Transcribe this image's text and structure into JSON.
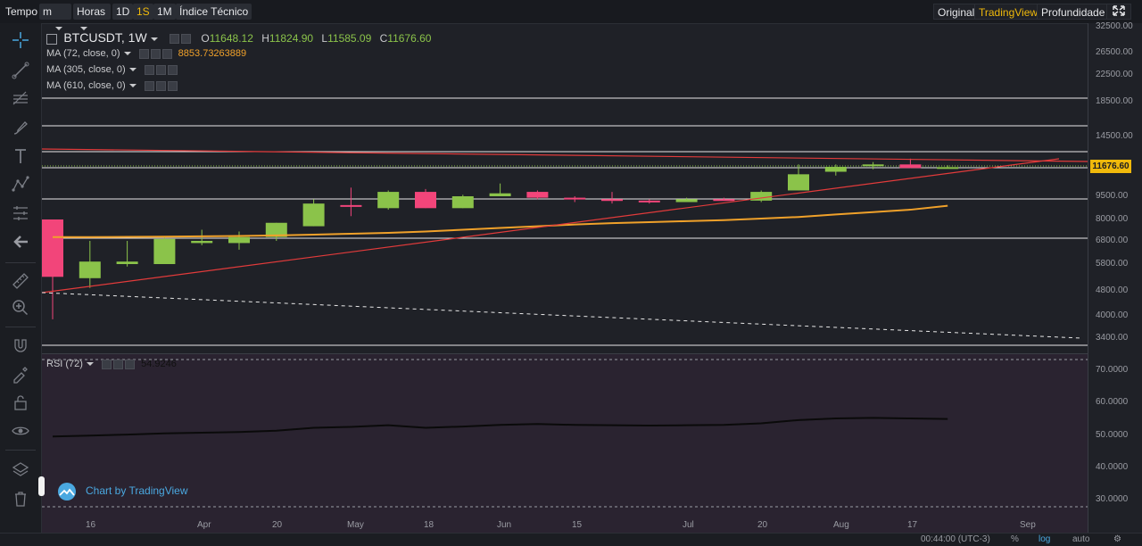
{
  "toolbar": {
    "tempo": "Tempo",
    "m": "m",
    "horas": "Horas",
    "d1": "1D",
    "s1": "1S",
    "m1": "1M",
    "indice": "Índice Técnico",
    "original": "Original",
    "tradingview": "TradingView",
    "profundidade": "Profundidade"
  },
  "legend": {
    "symbol": "BTCUSDT, 1W",
    "o_label": "O",
    "o_value": "11648.12",
    "h_label": "H",
    "h_value": "11824.90",
    "l_label": "L",
    "l_value": "11585.09",
    "c_label": "C",
    "c_value": "11676.60",
    "ma1": "MA (72, close, 0)",
    "ma1_value": "8853.73263889",
    "ma2": "MA (305, close, 0)",
    "ma3": "MA (610, close, 0)",
    "rsi": "RSI (72)",
    "rsi_value": "54.9246"
  },
  "price_axis": [
    "32500.00",
    "26500.00",
    "22500.00",
    "18500.00",
    "14500.00",
    "9500.00",
    "8000.00",
    "6800.00",
    "5800.00",
    "4800.00",
    "4000.00",
    "3400.00"
  ],
  "current_price": "11676.60",
  "rsi_axis": [
    "70.0000",
    "60.0000",
    "50.0000",
    "40.0000",
    "30.0000"
  ],
  "time_axis": [
    "16",
    "Apr",
    "20",
    "May",
    "18",
    "Jun",
    "15",
    "Jul",
    "20",
    "Aug",
    "17",
    "Sep"
  ],
  "branding": "Chart by TradingView",
  "bottom": {
    "time": "00:44:00 (UTC-3)",
    "pct": "%",
    "log": "log",
    "auto": "auto"
  },
  "colors": {
    "up": "#8bc34a",
    "down": "#f2457a",
    "accent": "#f0b90b",
    "ma": "#f0a12a",
    "trend": "#e23b3b"
  },
  "chart_data": {
    "type": "candlestick",
    "title": "BTCUSDT, 1W",
    "candles": [
      {
        "o": 8000,
        "h": 8000,
        "l": 3900,
        "c": 5300
      },
      {
        "o": 5250,
        "h": 6800,
        "l": 4900,
        "c": 5900
      },
      {
        "o": 5800,
        "h": 6800,
        "l": 5700,
        "c": 5900
      },
      {
        "o": 5800,
        "h": 7000,
        "l": 5800,
        "c": 6900
      },
      {
        "o": 6700,
        "h": 7400,
        "l": 6600,
        "c": 6800
      },
      {
        "o": 6700,
        "h": 7300,
        "l": 6400,
        "c": 7000
      },
      {
        "o": 7000,
        "h": 7800,
        "l": 6800,
        "c": 7800
      },
      {
        "o": 7600,
        "h": 9300,
        "l": 7600,
        "c": 9000
      },
      {
        "o": 8900,
        "h": 10100,
        "l": 8200,
        "c": 8800
      },
      {
        "o": 8700,
        "h": 9900,
        "l": 8600,
        "c": 9800
      },
      {
        "o": 9800,
        "h": 10000,
        "l": 8700,
        "c": 8700
      },
      {
        "o": 8700,
        "h": 9600,
        "l": 8700,
        "c": 9500
      },
      {
        "o": 9500,
        "h": 10400,
        "l": 9500,
        "c": 9700
      },
      {
        "o": 9800,
        "h": 9900,
        "l": 9300,
        "c": 9400
      },
      {
        "o": 9400,
        "h": 9500,
        "l": 9100,
        "c": 9300
      },
      {
        "o": 9300,
        "h": 9800,
        "l": 9000,
        "c": 9200
      },
      {
        "o": 9200,
        "h": 9300,
        "l": 9000,
        "c": 9100
      },
      {
        "o": 9100,
        "h": 9400,
        "l": 9100,
        "c": 9300
      },
      {
        "o": 9300,
        "h": 9400,
        "l": 9200,
        "c": 9250
      },
      {
        "o": 9200,
        "h": 9900,
        "l": 9100,
        "c": 9800
      },
      {
        "o": 9900,
        "h": 11900,
        "l": 9900,
        "c": 11100
      },
      {
        "o": 11300,
        "h": 11900,
        "l": 11000,
        "c": 11700
      },
      {
        "o": 11800,
        "h": 12100,
        "l": 11500,
        "c": 11900
      },
      {
        "o": 11900,
        "h": 12400,
        "l": 11600,
        "c": 11600
      },
      {
        "o": 11648.12,
        "h": 11824.9,
        "l": 11585.09,
        "c": 11676.6
      }
    ],
    "ma72": [
      7000,
      7000,
      7010,
      7020,
      7040,
      7060,
      7090,
      7130,
      7180,
      7230,
      7300,
      7400,
      7500,
      7600,
      7700,
      7780,
      7840,
      7900,
      7960,
      8050,
      8150,
      8300,
      8450,
      8600,
      8853.73
    ],
    "rsi": [
      49.5,
      49.8,
      50.1,
      50.5,
      50.7,
      50.9,
      51.3,
      52.2,
      52.5,
      53,
      52.2,
      52.6,
      53.1,
      53.4,
      53.1,
      53.0,
      52.9,
      53.0,
      53.1,
      53.6,
      54.6,
      55.1,
      55.3,
      55.1,
      54.9246
    ],
    "ylim_log": [
      3000,
      35000
    ],
    "rsi_ylim": [
      25,
      75
    ]
  }
}
